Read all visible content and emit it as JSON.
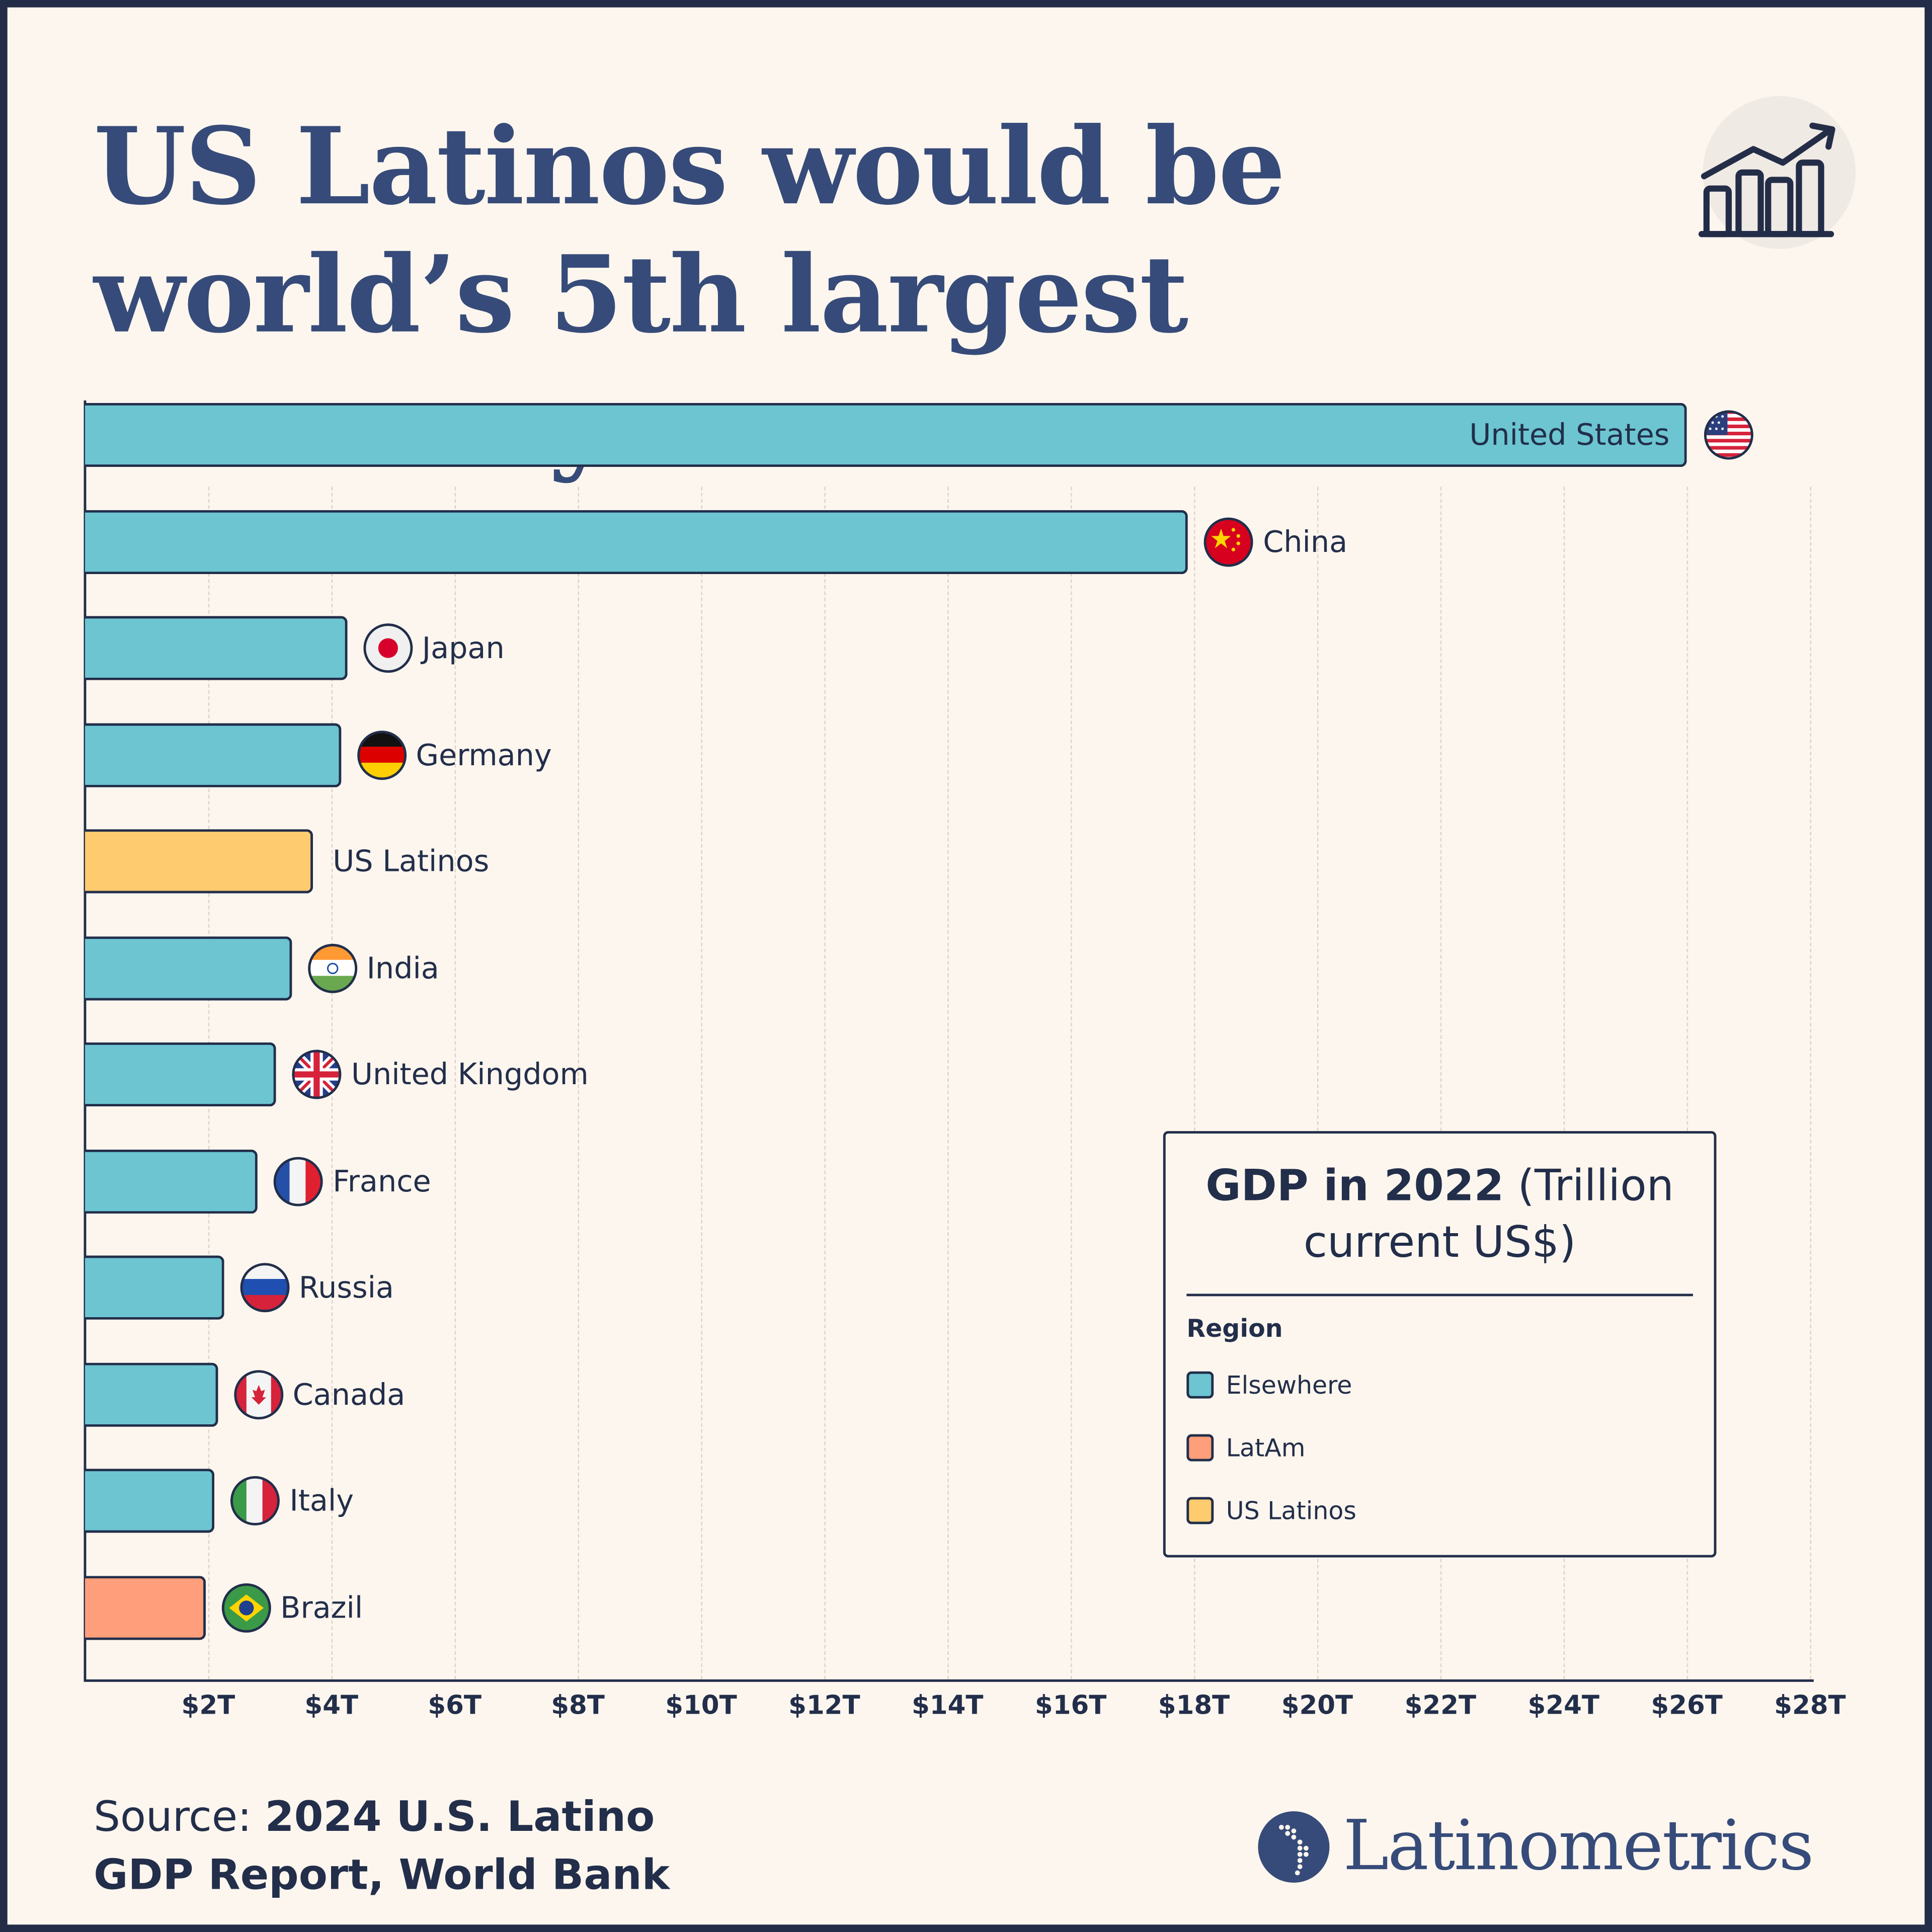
{
  "title": "US Latinos would be world’s 5th largest economy",
  "colors": {
    "Elsewhere": "#6cc5d1",
    "LatAm": "#ff9e7a",
    "US Latinos": "#fecb6e",
    "text": "#222e4a",
    "title": "#364b79",
    "background": "#fdf6ee"
  },
  "chart_data": {
    "type": "bar",
    "orientation": "horizontal",
    "categories": [
      "United States",
      "China",
      "Japan",
      "Germany",
      "US Latinos",
      "India",
      "United Kingdom",
      "France",
      "Russia",
      "Canada",
      "Italy",
      "Brazil"
    ],
    "values": [
      26.0,
      17.9,
      4.25,
      4.15,
      3.7,
      3.35,
      3.1,
      2.8,
      2.25,
      2.15,
      2.1,
      1.95
    ],
    "regions": [
      "Elsewhere",
      "Elsewhere",
      "Elsewhere",
      "Elsewhere",
      "US Latinos",
      "Elsewhere",
      "Elsewhere",
      "Elsewhere",
      "Elsewhere",
      "Elsewhere",
      "Elsewhere",
      "LatAm"
    ],
    "flags": [
      "us-flag",
      "china-flag",
      "japan-flag",
      "germany-flag",
      "",
      "india-flag",
      "uk-flag",
      "france-flag",
      "russia-flag",
      "canada-flag",
      "italy-flag",
      "brazil-flag"
    ],
    "xlim": [
      0,
      28
    ],
    "xticks": [
      2,
      4,
      6,
      8,
      10,
      12,
      14,
      16,
      18,
      20,
      22,
      24,
      26,
      28
    ],
    "xtick_labels": [
      "$2T",
      "$4T",
      "$6T",
      "$8T",
      "$10T",
      "$12T",
      "$14T",
      "$16T",
      "$18T",
      "$20T",
      "$22T",
      "$24T",
      "$26T",
      "$28T"
    ],
    "grid": "vertical dashed",
    "xlabel": "",
    "ylabel": "",
    "legend": {
      "title_bold": "GDP in 2022",
      "title_rest": "(Trillion current US$)",
      "heading": "Region",
      "entries": [
        "Elsewhere",
        "LatAm",
        "US Latinos"
      ],
      "placement": "bottom-right"
    }
  },
  "footer": {
    "source_prefix": "Source:",
    "source_line1": "2024 U.S. Latino",
    "source_line2": "GDP Report, World Bank",
    "brand": "Latinometrics"
  },
  "icons": {
    "header": "bar-chart-trend-icon",
    "brand": "americas-map-logo"
  }
}
